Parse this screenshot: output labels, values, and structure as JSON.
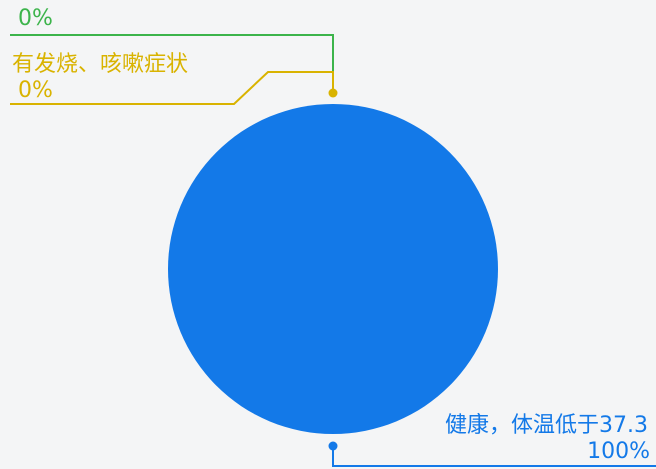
{
  "chart_data": {
    "type": "pie",
    "title": "",
    "series": [
      {
        "name": "",
        "values": [
          0,
          0,
          100
        ]
      }
    ],
    "categories": [
      "",
      "有发烧、咳嗽症状",
      "健康，体温低于37.3"
    ],
    "value_labels": [
      "0%",
      "0%",
      "100%"
    ],
    "colors": [
      "#3cb44b",
      "#d9b300",
      "#1379e8"
    ],
    "legend": "none"
  }
}
